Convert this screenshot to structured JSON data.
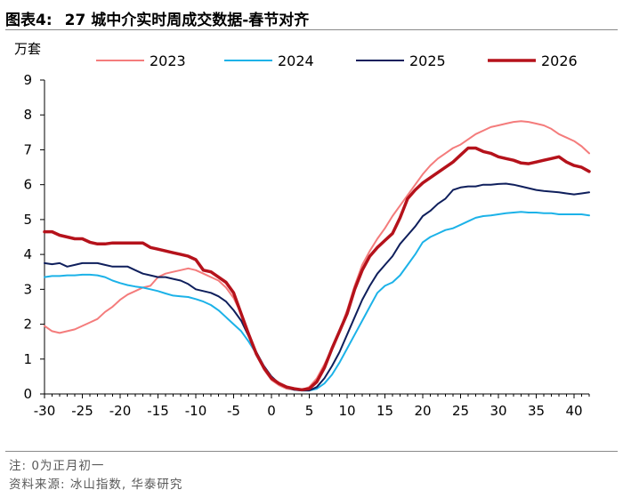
{
  "header": {
    "figure_label": "图表4:",
    "title": "27 城中介实时周成交数据-春节对齐"
  },
  "footer": {
    "note": "注: 0为正月初一",
    "source": "资料来源: 冰山指数, 华泰研究"
  },
  "colors": {
    "s2023": "#F47C7C",
    "s2024": "#1CB2E8",
    "s2025": "#0F1F5C",
    "s2026": "#B5121B",
    "axis": "#000000"
  },
  "chart_data": {
    "type": "line",
    "title": "27 城中介实时周成交数据-春节对齐",
    "xlabel": "",
    "ylabel": "万套",
    "xlim": [
      -30,
      42
    ],
    "ylim": [
      0,
      9
    ],
    "xticks": [
      -30,
      -25,
      -20,
      -15,
      -10,
      -5,
      0,
      5,
      10,
      15,
      20,
      25,
      30,
      35,
      40
    ],
    "yticks": [
      0,
      1,
      2,
      3,
      4,
      5,
      6,
      7,
      8,
      9
    ],
    "legend_position": "top",
    "grid": false,
    "series": [
      {
        "name": "2023",
        "color_key": "s2023",
        "points": [
          [
            -30,
            1.95
          ],
          [
            -29,
            1.8
          ],
          [
            -28,
            1.75
          ],
          [
            -27,
            1.8
          ],
          [
            -26,
            1.85
          ],
          [
            -25,
            1.95
          ],
          [
            -24,
            2.05
          ],
          [
            -23,
            2.15
          ],
          [
            -22,
            2.35
          ],
          [
            -21,
            2.5
          ],
          [
            -20,
            2.7
          ],
          [
            -19,
            2.85
          ],
          [
            -18,
            2.95
          ],
          [
            -17,
            3.05
          ],
          [
            -16,
            3.1
          ],
          [
            -15,
            3.35
          ],
          [
            -14,
            3.45
          ],
          [
            -13,
            3.5
          ],
          [
            -12,
            3.55
          ],
          [
            -11,
            3.6
          ],
          [
            -10,
            3.55
          ],
          [
            -9,
            3.45
          ],
          [
            -8,
            3.35
          ],
          [
            -7,
            3.25
          ],
          [
            -6,
            3.05
          ],
          [
            -5,
            2.75
          ],
          [
            -4,
            2.3
          ],
          [
            -3,
            1.75
          ],
          [
            -2,
            1.2
          ],
          [
            -1,
            0.7
          ],
          [
            0,
            0.4
          ],
          [
            1,
            0.25
          ],
          [
            2,
            0.15
          ],
          [
            3,
            0.12
          ],
          [
            4,
            0.12
          ],
          [
            5,
            0.2
          ],
          [
            6,
            0.45
          ],
          [
            7,
            0.85
          ],
          [
            8,
            1.3
          ],
          [
            9,
            1.8
          ],
          [
            10,
            2.4
          ],
          [
            11,
            3.1
          ],
          [
            12,
            3.7
          ],
          [
            13,
            4.1
          ],
          [
            14,
            4.45
          ],
          [
            15,
            4.75
          ],
          [
            16,
            5.1
          ],
          [
            17,
            5.4
          ],
          [
            18,
            5.7
          ],
          [
            19,
            6.0
          ],
          [
            20,
            6.3
          ],
          [
            21,
            6.55
          ],
          [
            22,
            6.75
          ],
          [
            23,
            6.9
          ],
          [
            24,
            7.05
          ],
          [
            25,
            7.15
          ],
          [
            26,
            7.3
          ],
          [
            27,
            7.45
          ],
          [
            28,
            7.55
          ],
          [
            29,
            7.65
          ],
          [
            30,
            7.7
          ],
          [
            31,
            7.75
          ],
          [
            32,
            7.8
          ],
          [
            33,
            7.82
          ],
          [
            34,
            7.8
          ],
          [
            35,
            7.75
          ],
          [
            36,
            7.7
          ],
          [
            37,
            7.6
          ],
          [
            38,
            7.45
          ],
          [
            39,
            7.35
          ],
          [
            40,
            7.25
          ],
          [
            41,
            7.1
          ],
          [
            42,
            6.9
          ]
        ]
      },
      {
        "name": "2024",
        "color_key": "s2024",
        "points": [
          [
            -30,
            3.35
          ],
          [
            -29,
            3.38
          ],
          [
            -28,
            3.38
          ],
          [
            -27,
            3.4
          ],
          [
            -26,
            3.4
          ],
          [
            -25,
            3.42
          ],
          [
            -24,
            3.42
          ],
          [
            -23,
            3.4
          ],
          [
            -22,
            3.35
          ],
          [
            -21,
            3.25
          ],
          [
            -20,
            3.18
          ],
          [
            -19,
            3.12
          ],
          [
            -18,
            3.08
          ],
          [
            -17,
            3.05
          ],
          [
            -16,
            3.0
          ],
          [
            -15,
            2.95
          ],
          [
            -14,
            2.88
          ],
          [
            -13,
            2.82
          ],
          [
            -12,
            2.8
          ],
          [
            -11,
            2.78
          ],
          [
            -10,
            2.72
          ],
          [
            -9,
            2.65
          ],
          [
            -8,
            2.55
          ],
          [
            -7,
            2.4
          ],
          [
            -6,
            2.2
          ],
          [
            -5,
            2.0
          ],
          [
            -4,
            1.8
          ],
          [
            -3,
            1.5
          ],
          [
            -2,
            1.15
          ],
          [
            -1,
            0.8
          ],
          [
            0,
            0.5
          ],
          [
            1,
            0.3
          ],
          [
            2,
            0.18
          ],
          [
            3,
            0.12
          ],
          [
            4,
            0.1
          ],
          [
            5,
            0.1
          ],
          [
            6,
            0.15
          ],
          [
            7,
            0.3
          ],
          [
            8,
            0.55
          ],
          [
            9,
            0.9
          ],
          [
            10,
            1.3
          ],
          [
            11,
            1.7
          ],
          [
            12,
            2.1
          ],
          [
            13,
            2.5
          ],
          [
            14,
            2.9
          ],
          [
            15,
            3.1
          ],
          [
            16,
            3.2
          ],
          [
            17,
            3.4
          ],
          [
            18,
            3.7
          ],
          [
            19,
            4.0
          ],
          [
            20,
            4.35
          ],
          [
            21,
            4.5
          ],
          [
            22,
            4.6
          ],
          [
            23,
            4.7
          ],
          [
            24,
            4.75
          ],
          [
            25,
            4.85
          ],
          [
            26,
            4.95
          ],
          [
            27,
            5.05
          ],
          [
            28,
            5.1
          ],
          [
            29,
            5.12
          ],
          [
            30,
            5.15
          ],
          [
            31,
            5.18
          ],
          [
            32,
            5.2
          ],
          [
            33,
            5.22
          ],
          [
            34,
            5.2
          ],
          [
            35,
            5.2
          ],
          [
            36,
            5.18
          ],
          [
            37,
            5.18
          ],
          [
            38,
            5.15
          ],
          [
            39,
            5.15
          ],
          [
            40,
            5.15
          ],
          [
            41,
            5.15
          ],
          [
            42,
            5.12
          ]
        ]
      },
      {
        "name": "2025",
        "color_key": "s2025",
        "points": [
          [
            -30,
            3.75
          ],
          [
            -29,
            3.72
          ],
          [
            -28,
            3.75
          ],
          [
            -27,
            3.65
          ],
          [
            -26,
            3.7
          ],
          [
            -25,
            3.75
          ],
          [
            -24,
            3.75
          ],
          [
            -23,
            3.75
          ],
          [
            -22,
            3.7
          ],
          [
            -21,
            3.65
          ],
          [
            -20,
            3.65
          ],
          [
            -19,
            3.65
          ],
          [
            -18,
            3.55
          ],
          [
            -17,
            3.45
          ],
          [
            -16,
            3.4
          ],
          [
            -15,
            3.35
          ],
          [
            -14,
            3.35
          ],
          [
            -13,
            3.3
          ],
          [
            -12,
            3.25
          ],
          [
            -11,
            3.15
          ],
          [
            -10,
            3.0
          ],
          [
            -9,
            2.95
          ],
          [
            -8,
            2.9
          ],
          [
            -7,
            2.8
          ],
          [
            -6,
            2.65
          ],
          [
            -5,
            2.4
          ],
          [
            -4,
            2.1
          ],
          [
            -3,
            1.65
          ],
          [
            -2,
            1.2
          ],
          [
            -1,
            0.8
          ],
          [
            0,
            0.5
          ],
          [
            1,
            0.3
          ],
          [
            2,
            0.2
          ],
          [
            3,
            0.12
          ],
          [
            4,
            0.1
          ],
          [
            5,
            0.1
          ],
          [
            6,
            0.2
          ],
          [
            7,
            0.45
          ],
          [
            8,
            0.8
          ],
          [
            9,
            1.2
          ],
          [
            10,
            1.7
          ],
          [
            11,
            2.2
          ],
          [
            12,
            2.7
          ],
          [
            13,
            3.1
          ],
          [
            14,
            3.45
          ],
          [
            15,
            3.7
          ],
          [
            16,
            3.95
          ],
          [
            17,
            4.3
          ],
          [
            18,
            4.55
          ],
          [
            19,
            4.8
          ],
          [
            20,
            5.1
          ],
          [
            21,
            5.25
          ],
          [
            22,
            5.45
          ],
          [
            23,
            5.6
          ],
          [
            24,
            5.85
          ],
          [
            25,
            5.92
          ],
          [
            26,
            5.95
          ],
          [
            27,
            5.95
          ],
          [
            28,
            6.0
          ],
          [
            29,
            6.0
          ],
          [
            30,
            6.02
          ],
          [
            31,
            6.03
          ],
          [
            32,
            6.0
          ],
          [
            33,
            5.95
          ],
          [
            34,
            5.9
          ],
          [
            35,
            5.85
          ],
          [
            36,
            5.82
          ],
          [
            37,
            5.8
          ],
          [
            38,
            5.78
          ],
          [
            39,
            5.75
          ],
          [
            40,
            5.72
          ],
          [
            41,
            5.75
          ],
          [
            42,
            5.78
          ]
        ]
      },
      {
        "name": "2026",
        "color_key": "s2026",
        "points": [
          [
            -30,
            4.65
          ],
          [
            -29,
            4.65
          ],
          [
            -28,
            4.55
          ],
          [
            -27,
            4.5
          ],
          [
            -26,
            4.45
          ],
          [
            -25,
            4.45
          ],
          [
            -24,
            4.35
          ],
          [
            -23,
            4.3
          ],
          [
            -22,
            4.3
          ],
          [
            -21,
            4.33
          ],
          [
            -20,
            4.33
          ],
          [
            -19,
            4.33
          ],
          [
            -18,
            4.33
          ],
          [
            -17,
            4.33
          ],
          [
            -16,
            4.2
          ],
          [
            -15,
            4.15
          ],
          [
            -14,
            4.1
          ],
          [
            -13,
            4.05
          ],
          [
            -12,
            4.0
          ],
          [
            -11,
            3.95
          ],
          [
            -10,
            3.85
          ],
          [
            -9,
            3.55
          ],
          [
            -8,
            3.5
          ],
          [
            -7,
            3.35
          ],
          [
            -6,
            3.2
          ],
          [
            -5,
            2.9
          ],
          [
            -4,
            2.3
          ],
          [
            -3,
            1.7
          ],
          [
            -2,
            1.15
          ],
          [
            -1,
            0.75
          ],
          [
            0,
            0.45
          ],
          [
            1,
            0.3
          ],
          [
            2,
            0.2
          ],
          [
            3,
            0.15
          ],
          [
            4,
            0.12
          ],
          [
            5,
            0.15
          ],
          [
            6,
            0.35
          ],
          [
            7,
            0.75
          ],
          [
            8,
            1.3
          ],
          [
            9,
            1.8
          ],
          [
            10,
            2.3
          ],
          [
            11,
            3.0
          ],
          [
            12,
            3.55
          ],
          [
            13,
            3.95
          ],
          [
            14,
            4.2
          ],
          [
            15,
            4.4
          ],
          [
            16,
            4.6
          ],
          [
            17,
            5.05
          ],
          [
            18,
            5.6
          ],
          [
            19,
            5.85
          ],
          [
            20,
            6.05
          ],
          [
            21,
            6.2
          ],
          [
            22,
            6.35
          ],
          [
            23,
            6.5
          ],
          [
            24,
            6.65
          ],
          [
            25,
            6.85
          ],
          [
            26,
            7.05
          ],
          [
            27,
            7.05
          ],
          [
            28,
            6.95
          ],
          [
            29,
            6.9
          ],
          [
            30,
            6.8
          ],
          [
            31,
            6.75
          ],
          [
            32,
            6.7
          ],
          [
            33,
            6.62
          ],
          [
            34,
            6.6
          ],
          [
            35,
            6.65
          ],
          [
            36,
            6.7
          ],
          [
            37,
            6.75
          ],
          [
            38,
            6.8
          ],
          [
            39,
            6.65
          ],
          [
            40,
            6.55
          ],
          [
            41,
            6.5
          ],
          [
            42,
            6.38
          ]
        ]
      }
    ]
  }
}
